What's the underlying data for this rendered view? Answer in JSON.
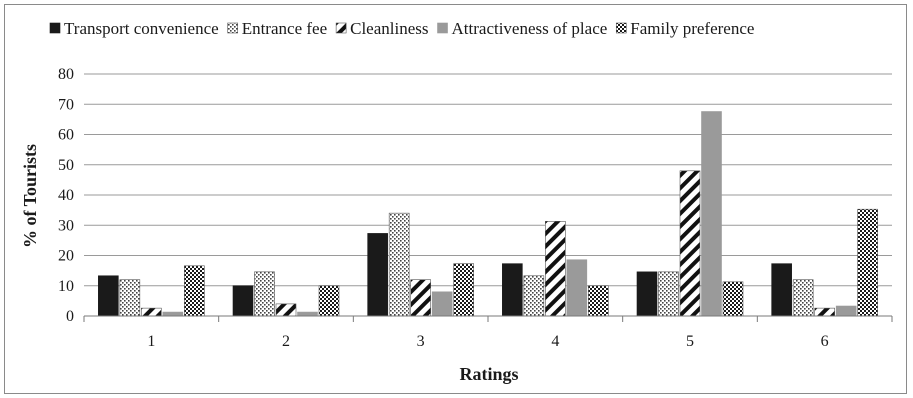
{
  "chart_data": {
    "type": "bar",
    "title": "",
    "xlabel": "Ratings",
    "ylabel": "% of Tourists",
    "ylim": [
      0,
      80
    ],
    "yticks": [
      "0",
      "10",
      "20",
      "30",
      "40",
      "50",
      "60",
      "70",
      "80"
    ],
    "categories": [
      "1",
      "2",
      "3",
      "4",
      "5",
      "6"
    ],
    "grid": true,
    "legend_position": "top",
    "series": [
      {
        "name": "Transport convenience",
        "fill": "solid",
        "color": "#1a1a1a",
        "values": [
          13.3,
          10.0,
          27.3,
          17.3,
          14.6,
          17.3
        ]
      },
      {
        "name": "Entrance fee",
        "fill": "dots",
        "color": "#555555",
        "values": [
          12.0,
          14.6,
          34.0,
          13.3,
          14.6,
          12.0
        ]
      },
      {
        "name": "Cleanliness",
        "fill": "diagonal",
        "color": "#1a1a1a",
        "values": [
          2.6,
          4.0,
          12.0,
          31.3,
          48.0,
          2.6
        ]
      },
      {
        "name": "Attractiveness of place",
        "fill": "solid",
        "color": "#9a9a9a",
        "values": [
          1.3,
          1.3,
          8.0,
          18.6,
          67.6,
          3.3
        ]
      },
      {
        "name": "Family preference",
        "fill": "checker",
        "color": "#1a1a1a",
        "values": [
          16.6,
          10.0,
          17.3,
          10.0,
          11.3,
          35.3
        ]
      }
    ]
  }
}
